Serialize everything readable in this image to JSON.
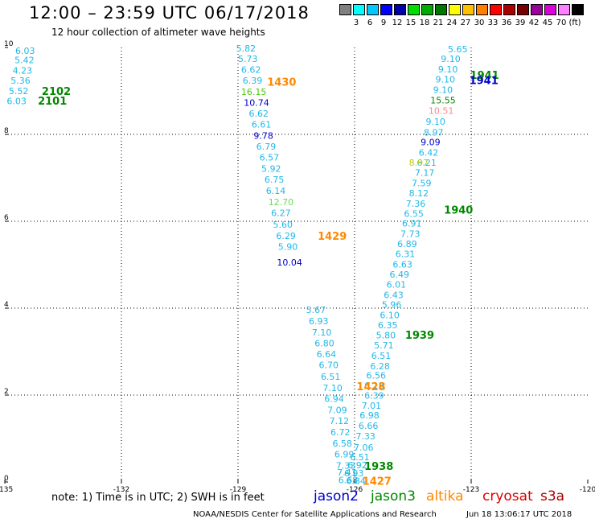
{
  "header": {
    "title": "12:00 – 23:59 UTC 06/17/2018",
    "subtitle": "12 hour collection of altimeter wave heights"
  },
  "scale": {
    "colors": [
      "#808080",
      "#00ffff",
      "#00c8ff",
      "#0000ff",
      "#0000aa",
      "#00dd00",
      "#00aa00",
      "#007700",
      "#ffff00",
      "#ffc000",
      "#ff8000",
      "#ff0000",
      "#aa0000",
      "#770000",
      "#990099",
      "#dd00dd",
      "#ff80ff",
      "#000000"
    ],
    "labels": [
      {
        "text": "3",
        "after": 1
      },
      {
        "text": "6",
        "after": 2
      },
      {
        "text": "9",
        "after": 3
      },
      {
        "text": "12",
        "after": 4
      },
      {
        "text": "15",
        "after": 5
      },
      {
        "text": "18",
        "after": 6
      },
      {
        "text": "21",
        "after": 7
      },
      {
        "text": "24",
        "after": 8
      },
      {
        "text": "27",
        "after": 9
      },
      {
        "text": "30",
        "after": 10
      },
      {
        "text": "33",
        "after": 11
      },
      {
        "text": "36",
        "after": 12
      },
      {
        "text": "39",
        "after": 13
      },
      {
        "text": "42",
        "after": 14
      },
      {
        "text": "45",
        "after": 15
      },
      {
        "text": "70",
        "after": 16
      },
      {
        "text": "(ft)",
        "after": 17
      }
    ]
  },
  "footer": {
    "note": "note: 1) Time is in UTC; 2) SWH is in feet",
    "satellites": [
      {
        "name": "jason2",
        "color": "#0000cc"
      },
      {
        "name": "jason3",
        "color": "#008800"
      },
      {
        "name": "altika",
        "color": "#ff8800"
      },
      {
        "name": "cryosat",
        "color": "#dd0000"
      },
      {
        "name": "s3a",
        "color": "#aa0000"
      }
    ],
    "credit": "NOAA/NESDIS Center for Satellite Applications and Research",
    "timestamp": "Jun 18 13:06:17 UTC 2018"
  },
  "chart_data": {
    "type": "scatter",
    "title": "12:00 – 23:59 UTC 06/17/2018",
    "subtitle": "12 hour collection of altimeter wave heights",
    "xlim": [
      -135,
      -120
    ],
    "ylim": [
      0,
      10
    ],
    "x_ticks": [
      "-135",
      "-132",
      "-129",
      "-126",
      "-123",
      "-120"
    ],
    "y_ticks": [
      "0",
      "2",
      "4",
      "6",
      "8",
      "10"
    ],
    "grid": true,
    "colors": {
      "cyan": "#1fb8e8",
      "blue": "#0000cc",
      "green": "#008800",
      "lime": "#44cc00",
      "lightgreen": "#66dd55",
      "yellow": "#cccc00",
      "orange": "#ff8800",
      "pink": "#ff8888"
    },
    "swh_points": [
      {
        "x": -134.73,
        "y": 9.93,
        "v": "6.03",
        "c": "cyan"
      },
      {
        "x": -134.75,
        "y": 9.71,
        "v": "5.42",
        "c": "cyan"
      },
      {
        "x": -134.8,
        "y": 9.47,
        "v": "4.23",
        "c": "cyan"
      },
      {
        "x": -134.85,
        "y": 9.24,
        "v": "5.36",
        "c": "cyan"
      },
      {
        "x": -134.9,
        "y": 9.0,
        "v": "5.52",
        "c": "cyan"
      },
      {
        "x": -134.95,
        "y": 8.77,
        "v": "6.03",
        "c": "cyan"
      },
      {
        "x": -129.05,
        "y": 9.98,
        "v": "5.82",
        "c": "cyan"
      },
      {
        "x": -129.0,
        "y": 9.74,
        "v": "5.73",
        "c": "cyan"
      },
      {
        "x": -128.92,
        "y": 9.49,
        "v": "6.62",
        "c": "cyan"
      },
      {
        "x": -128.88,
        "y": 9.24,
        "v": "6.39",
        "c": "cyan"
      },
      {
        "x": -128.92,
        "y": 8.98,
        "v": "16.15",
        "c": "lime"
      },
      {
        "x": -128.85,
        "y": 8.73,
        "v": "10.74",
        "c": "blue"
      },
      {
        "x": -128.72,
        "y": 8.48,
        "v": "6.62",
        "c": "cyan"
      },
      {
        "x": -128.65,
        "y": 8.23,
        "v": "6.61",
        "c": "cyan"
      },
      {
        "x": -128.6,
        "y": 7.97,
        "v": "9.78",
        "c": "blue"
      },
      {
        "x": -128.53,
        "y": 7.72,
        "v": "6.79",
        "c": "cyan"
      },
      {
        "x": -128.45,
        "y": 7.47,
        "v": "6.57",
        "c": "cyan"
      },
      {
        "x": -128.4,
        "y": 7.21,
        "v": "5.92",
        "c": "cyan"
      },
      {
        "x": -128.32,
        "y": 6.96,
        "v": "6.75",
        "c": "cyan"
      },
      {
        "x": -128.28,
        "y": 6.7,
        "v": "6.14",
        "c": "cyan"
      },
      {
        "x": -128.22,
        "y": 6.44,
        "v": "12.70",
        "c": "lightgreen"
      },
      {
        "x": -128.15,
        "y": 6.19,
        "v": "6.27",
        "c": "cyan"
      },
      {
        "x": -128.1,
        "y": 5.93,
        "v": "5.60",
        "c": "cyan"
      },
      {
        "x": -128.02,
        "y": 5.67,
        "v": "6.29",
        "c": "cyan"
      },
      {
        "x": -127.97,
        "y": 5.42,
        "v": "5.90",
        "c": "cyan"
      },
      {
        "x": -128.0,
        "y": 5.06,
        "v": "10.04",
        "c": "blue"
      },
      {
        "x": -127.25,
        "y": 3.96,
        "v": "5.67",
        "c": "cyan"
      },
      {
        "x": -127.18,
        "y": 3.7,
        "v": "6.93",
        "c": "cyan"
      },
      {
        "x": -127.1,
        "y": 3.44,
        "v": "7.10",
        "c": "cyan"
      },
      {
        "x": -127.03,
        "y": 3.19,
        "v": "6.80",
        "c": "cyan"
      },
      {
        "x": -126.98,
        "y": 2.94,
        "v": "6.64",
        "c": "cyan"
      },
      {
        "x": -126.92,
        "y": 2.69,
        "v": "6.70",
        "c": "cyan"
      },
      {
        "x": -126.87,
        "y": 2.43,
        "v": "6.51",
        "c": "cyan"
      },
      {
        "x": -126.82,
        "y": 2.17,
        "v": "7.10",
        "c": "cyan"
      },
      {
        "x": -126.78,
        "y": 1.92,
        "v": "6.94",
        "c": "cyan"
      },
      {
        "x": -126.7,
        "y": 1.66,
        "v": "7.09",
        "c": "cyan"
      },
      {
        "x": -126.65,
        "y": 1.41,
        "v": "7.12",
        "c": "cyan"
      },
      {
        "x": -126.62,
        "y": 1.15,
        "v": "6.72",
        "c": "cyan"
      },
      {
        "x": -126.57,
        "y": 0.89,
        "v": "6.58",
        "c": "cyan"
      },
      {
        "x": -126.52,
        "y": 0.64,
        "v": "6.99",
        "c": "cyan"
      },
      {
        "x": -126.48,
        "y": 0.38,
        "v": "7.33",
        "c": "cyan"
      },
      {
        "x": -126.45,
        "y": 0.22,
        "v": "7.41",
        "c": "cyan"
      },
      {
        "x": -126.42,
        "y": 0.05,
        "v": "6.68",
        "c": "cyan"
      },
      {
        "x": -126.27,
        "y": 0.2,
        "v": "6.93",
        "c": "cyan"
      },
      {
        "x": -126.22,
        "y": 0.03,
        "v": "6.84",
        "c": "cyan"
      },
      {
        "x": -126.18,
        "y": 0.39,
        "v": "6.92",
        "c": "cyan"
      },
      {
        "x": -126.12,
        "y": 0.57,
        "v": "6.51",
        "c": "cyan"
      },
      {
        "x": -126.02,
        "y": 0.8,
        "v": "7.06",
        "c": "cyan"
      },
      {
        "x": -125.97,
        "y": 1.06,
        "v": "7.33",
        "c": "cyan"
      },
      {
        "x": -125.9,
        "y": 1.3,
        "v": "6.66",
        "c": "cyan"
      },
      {
        "x": -125.87,
        "y": 1.54,
        "v": "6.98",
        "c": "cyan"
      },
      {
        "x": -125.82,
        "y": 1.76,
        "v": "7.01",
        "c": "cyan"
      },
      {
        "x": -125.75,
        "y": 1.99,
        "v": "6.39",
        "c": "cyan"
      },
      {
        "x": -125.75,
        "y": 2.22,
        "v": "6.18",
        "c": "cyan"
      },
      {
        "x": -125.7,
        "y": 2.45,
        "v": "6.56",
        "c": "cyan"
      },
      {
        "x": -125.6,
        "y": 2.67,
        "v": "6.28",
        "c": "cyan"
      },
      {
        "x": -125.57,
        "y": 2.91,
        "v": "6.51",
        "c": "cyan"
      },
      {
        "x": -125.5,
        "y": 3.15,
        "v": "5.71",
        "c": "cyan"
      },
      {
        "x": -125.45,
        "y": 3.38,
        "v": "5.80",
        "c": "cyan"
      },
      {
        "x": -125.4,
        "y": 3.61,
        "v": "6.35",
        "c": "cyan"
      },
      {
        "x": -125.35,
        "y": 3.84,
        "v": "6.10",
        "c": "cyan"
      },
      {
        "x": -125.3,
        "y": 4.08,
        "v": "5.96",
        "c": "cyan"
      },
      {
        "x": -125.25,
        "y": 4.31,
        "v": "6.43",
        "c": "cyan"
      },
      {
        "x": -125.18,
        "y": 4.55,
        "v": "6.01",
        "c": "cyan"
      },
      {
        "x": -125.1,
        "y": 4.78,
        "v": "6.49",
        "c": "cyan"
      },
      {
        "x": -125.02,
        "y": 5.01,
        "v": "6.63",
        "c": "cyan"
      },
      {
        "x": -124.95,
        "y": 5.25,
        "v": "6.31",
        "c": "cyan"
      },
      {
        "x": -124.9,
        "y": 5.48,
        "v": "6.89",
        "c": "cyan"
      },
      {
        "x": -124.82,
        "y": 5.71,
        "v": "7.73",
        "c": "cyan"
      },
      {
        "x": -124.78,
        "y": 5.95,
        "v": "6.91",
        "c": "cyan"
      },
      {
        "x": -124.73,
        "y": 6.18,
        "v": "6.55",
        "c": "cyan"
      },
      {
        "x": -124.68,
        "y": 6.41,
        "v": "7.36",
        "c": "cyan"
      },
      {
        "x": -124.6,
        "y": 6.65,
        "v": "8.12",
        "c": "cyan"
      },
      {
        "x": -124.53,
        "y": 6.88,
        "v": "7.59",
        "c": "cyan"
      },
      {
        "x": -124.45,
        "y": 7.12,
        "v": "7.17",
        "c": "cyan"
      },
      {
        "x": -124.4,
        "y": 7.35,
        "v": "6.21",
        "c": "cyan"
      },
      {
        "x": -124.35,
        "y": 7.58,
        "v": "6.42",
        "c": "cyan"
      },
      {
        "x": -124.3,
        "y": 7.82,
        "v": "9.09",
        "c": "blue"
      },
      {
        "x": -124.22,
        "y": 8.05,
        "v": "8.97",
        "c": "cyan"
      },
      {
        "x": -124.17,
        "y": 8.3,
        "v": "9.10",
        "c": "cyan"
      },
      {
        "x": -124.1,
        "y": 8.55,
        "v": "10.51",
        "c": "pink"
      },
      {
        "x": -124.05,
        "y": 8.79,
        "v": "15.55",
        "c": "green"
      },
      {
        "x": -123.98,
        "y": 9.03,
        "v": "9.10",
        "c": "cyan"
      },
      {
        "x": -123.92,
        "y": 9.27,
        "v": "9.10",
        "c": "cyan"
      },
      {
        "x": -123.85,
        "y": 9.5,
        "v": "9.10",
        "c": "cyan"
      },
      {
        "x": -123.78,
        "y": 9.74,
        "v": "9.10",
        "c": "cyan"
      },
      {
        "x": -123.6,
        "y": 9.96,
        "v": "5.65",
        "c": "cyan"
      },
      {
        "x": -124.6,
        "y": 7.35,
        "v": "8.97",
        "c": "yellow"
      }
    ],
    "track_labels": [
      {
        "x": -134.05,
        "y": 9.0,
        "t": "2102",
        "c": "green"
      },
      {
        "x": -134.15,
        "y": 8.78,
        "t": "2101",
        "c": "green"
      },
      {
        "x": -128.25,
        "y": 9.21,
        "t": "1430",
        "c": "orange"
      },
      {
        "x": -126.95,
        "y": 5.67,
        "t": "1429",
        "c": "orange"
      },
      {
        "x": -125.95,
        "y": 2.2,
        "t": "1428",
        "c": "orange"
      },
      {
        "x": -125.8,
        "y": 0.03,
        "t": "1427",
        "c": "orange"
      },
      {
        "x": -125.75,
        "y": 0.37,
        "t": "1938",
        "c": "green"
      },
      {
        "x": -124.7,
        "y": 3.39,
        "t": "1939",
        "c": "green"
      },
      {
        "x": -123.7,
        "y": 6.27,
        "t": "1940",
        "c": "green"
      },
      {
        "x": -123.03,
        "y": 9.37,
        "t": "1941",
        "c": "green"
      },
      {
        "x": -123.05,
        "y": 9.25,
        "t": "1941",
        "c": "blue"
      }
    ]
  }
}
